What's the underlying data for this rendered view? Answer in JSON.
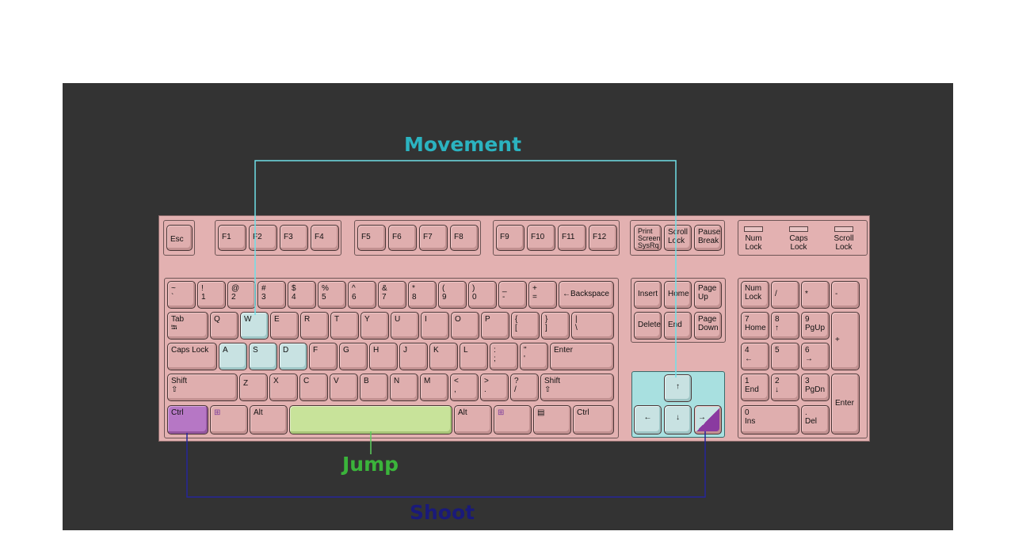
{
  "callouts": {
    "movement": "Movement",
    "jump": "Jump",
    "shoot": "Shoot"
  },
  "colors": {
    "movement": "#2bb3c0",
    "jump": "#3bb43b",
    "shoot": "#1a1a7a",
    "keyboard": "#e3b1b1",
    "backdrop": "#333333"
  },
  "keys": {
    "esc": "Esc",
    "f1": "F1",
    "f2": "F2",
    "f3": "F3",
    "f4": "F4",
    "f5": "F5",
    "f6": "F6",
    "f7": "F7",
    "f8": "F8",
    "f9": "F9",
    "f10": "F10",
    "f11": "F11",
    "f12": "F12",
    "print1": "Print",
    "print2": "Screen",
    "print3": "SysRq",
    "scroll1": "Scroll",
    "scroll2": "Lock",
    "pause1": "Pause",
    "pause2": "Break",
    "tilde1": "~",
    "tilde2": "`",
    "n1a": "!",
    "n1b": "1",
    "n2a": "@",
    "n2b": "2",
    "n3a": "#",
    "n3b": "3",
    "n4a": "$",
    "n4b": "4",
    "n5a": "%",
    "n5b": "5",
    "n6a": "^",
    "n6b": "6",
    "n7a": "&",
    "n7b": "7",
    "n8a": "*",
    "n8b": "8",
    "n9a": "(",
    "n9b": "9",
    "n0a": ")",
    "n0b": "0",
    "minus1": "_",
    "minus2": "-",
    "plus1": "+",
    "plus2": "=",
    "backspace": "←Backspace",
    "tab": "Tab",
    "tab2": "⭾",
    "q": "Q",
    "w": "W",
    "e": "E",
    "r": "R",
    "t": "T",
    "y": "Y",
    "u": "U",
    "i": "I",
    "o": "O",
    "p": "P",
    "lbr1": "{",
    "lbr2": "[",
    "rbr1": "}",
    "rbr2": "]",
    "bs1": "|",
    "bs2": "\\",
    "caps": "Caps Lock",
    "a": "A",
    "s": "S",
    "d": "D",
    "f": "F",
    "g": "G",
    "h": "H",
    "j": "J",
    "k": "K",
    "l": "L",
    "semi1": ":",
    "semi2": ";",
    "quot1": "\"",
    "quot2": "'",
    "enter": "Enter",
    "shift": "Shift",
    "shift_arrow": "⇧",
    "z": "Z",
    "x": "X",
    "c": "C",
    "v": "V",
    "b": "B",
    "n": "N",
    "m": "M",
    "lt1": "<",
    "lt2": ",",
    "gt1": ">",
    "gt2": ".",
    "q1": "?",
    "q2": "/",
    "ctrl": "Ctrl",
    "alt": "Alt",
    "win": "⊞",
    "menu": "▤",
    "insert": "Insert",
    "home": "Home",
    "pgup1": "Page",
    "pgup2": "Up",
    "delete": "Delete",
    "end": "End",
    "pgdn1": "Page",
    "pgdn2": "Down",
    "up": "↑",
    "left": "←",
    "down": "↓",
    "right": "→",
    "numlock1": "Num",
    "numlock2": "Lock",
    "kpdiv": "/",
    "kpmul": "*",
    "kpsub": "-",
    "kpadd": "+",
    "kp7a": "7",
    "kp7b": "Home",
    "kp8a": "8",
    "kp8b": "↑",
    "kp9a": "9",
    "kp9b": "PgUp",
    "kp4a": "4",
    "kp4b": "←",
    "kp5a": "5",
    "kp6a": "6",
    "kp6b": "→",
    "kp1a": "1",
    "kp1b": "End",
    "kp2a": "2",
    "kp2b": "↓",
    "kp3a": "3",
    "kp3b": "PgDn",
    "kp0a": "0",
    "kp0b": "Ins",
    "kpdot1": ".",
    "kpdot2": "Del",
    "kpenter": "Enter"
  },
  "leds": {
    "num1": "Num",
    "num2": "Lock",
    "caps1": "Caps",
    "caps2": "Lock",
    "scroll1": "Scroll",
    "scroll2": "Lock"
  }
}
